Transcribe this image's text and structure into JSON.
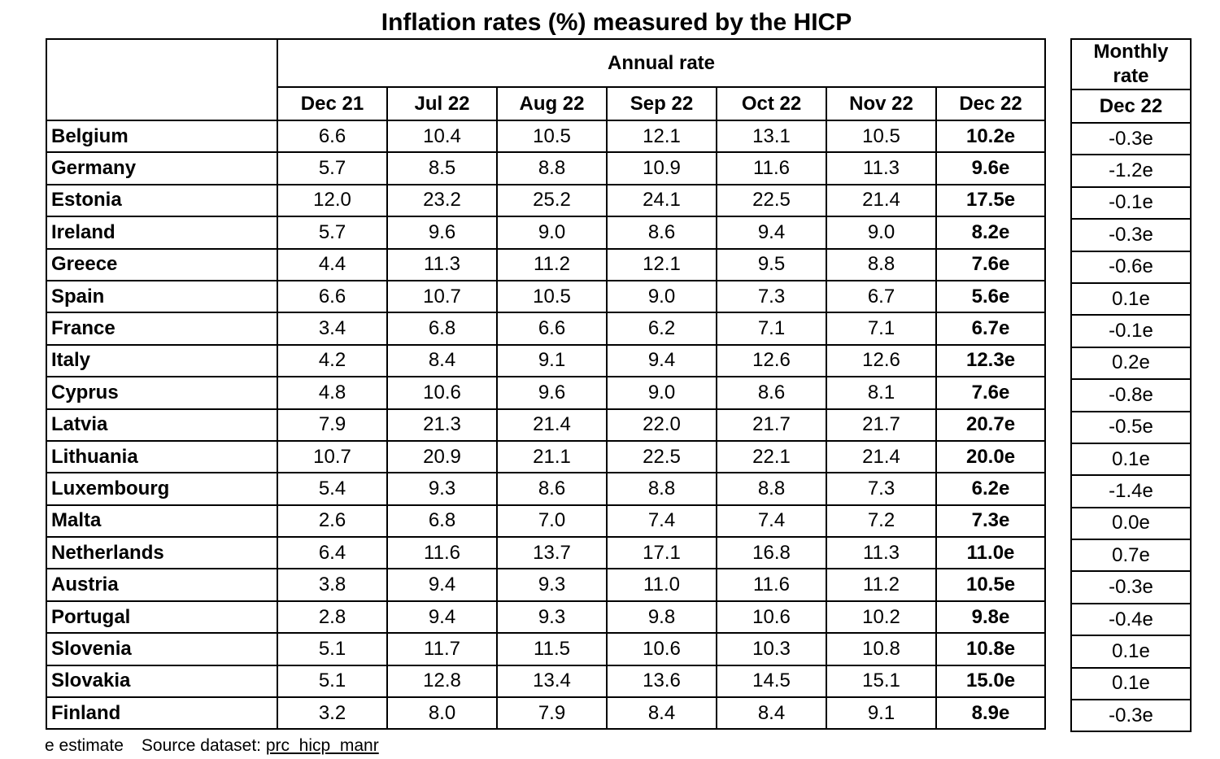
{
  "title": "Inflation rates (%) measured by the HICP",
  "annual_header": "Annual rate",
  "monthly_header": "Monthly rate",
  "annual_columns": [
    "Dec 21",
    "Jul 22",
    "Aug 22",
    "Sep 22",
    "Oct 22",
    "Nov 22",
    "Dec 22"
  ],
  "monthly_column": "Dec 22",
  "rows": [
    {
      "country": "Belgium",
      "annual": [
        "6.6",
        "10.4",
        "10.5",
        "12.1",
        "13.1",
        "10.5",
        "10.2e"
      ],
      "monthly": "-0.3e"
    },
    {
      "country": "Germany",
      "annual": [
        "5.7",
        "8.5",
        "8.8",
        "10.9",
        "11.6",
        "11.3",
        "9.6e"
      ],
      "monthly": "-1.2e"
    },
    {
      "country": "Estonia",
      "annual": [
        "12.0",
        "23.2",
        "25.2",
        "24.1",
        "22.5",
        "21.4",
        "17.5e"
      ],
      "monthly": "-0.1e"
    },
    {
      "country": "Ireland",
      "annual": [
        "5.7",
        "9.6",
        "9.0",
        "8.6",
        "9.4",
        "9.0",
        "8.2e"
      ],
      "monthly": "-0.3e"
    },
    {
      "country": "Greece",
      "annual": [
        "4.4",
        "11.3",
        "11.2",
        "12.1",
        "9.5",
        "8.8",
        "7.6e"
      ],
      "monthly": "-0.6e"
    },
    {
      "country": "Spain",
      "annual": [
        "6.6",
        "10.7",
        "10.5",
        "9.0",
        "7.3",
        "6.7",
        "5.6e"
      ],
      "monthly": "0.1e"
    },
    {
      "country": "France",
      "annual": [
        "3.4",
        "6.8",
        "6.6",
        "6.2",
        "7.1",
        "7.1",
        "6.7e"
      ],
      "monthly": "-0.1e"
    },
    {
      "country": "Italy",
      "annual": [
        "4.2",
        "8.4",
        "9.1",
        "9.4",
        "12.6",
        "12.6",
        "12.3e"
      ],
      "monthly": "0.2e"
    },
    {
      "country": "Cyprus",
      "annual": [
        "4.8",
        "10.6",
        "9.6",
        "9.0",
        "8.6",
        "8.1",
        "7.6e"
      ],
      "monthly": "-0.8e"
    },
    {
      "country": "Latvia",
      "annual": [
        "7.9",
        "21.3",
        "21.4",
        "22.0",
        "21.7",
        "21.7",
        "20.7e"
      ],
      "monthly": "-0.5e"
    },
    {
      "country": "Lithuania",
      "annual": [
        "10.7",
        "20.9",
        "21.1",
        "22.5",
        "22.1",
        "21.4",
        "20.0e"
      ],
      "monthly": "0.1e"
    },
    {
      "country": "Luxembourg",
      "annual": [
        "5.4",
        "9.3",
        "8.6",
        "8.8",
        "8.8",
        "7.3",
        "6.2e"
      ],
      "monthly": "-1.4e"
    },
    {
      "country": "Malta",
      "annual": [
        "2.6",
        "6.8",
        "7.0",
        "7.4",
        "7.4",
        "7.2",
        "7.3e"
      ],
      "monthly": "0.0e"
    },
    {
      "country": "Netherlands",
      "annual": [
        "6.4",
        "11.6",
        "13.7",
        "17.1",
        "16.8",
        "11.3",
        "11.0e"
      ],
      "monthly": "0.7e"
    },
    {
      "country": "Austria",
      "annual": [
        "3.8",
        "9.4",
        "9.3",
        "11.0",
        "11.6",
        "11.2",
        "10.5e"
      ],
      "monthly": "-0.3e"
    },
    {
      "country": "Portugal",
      "annual": [
        "2.8",
        "9.4",
        "9.3",
        "9.8",
        "10.6",
        "10.2",
        "9.8e"
      ],
      "monthly": "-0.4e"
    },
    {
      "country": "Slovenia",
      "annual": [
        "5.1",
        "11.7",
        "11.5",
        "10.6",
        "10.3",
        "10.8",
        "10.8e"
      ],
      "monthly": "0.1e"
    },
    {
      "country": "Slovakia",
      "annual": [
        "5.1",
        "12.8",
        "13.4",
        "13.6",
        "14.5",
        "15.1",
        "15.0e"
      ],
      "monthly": "0.1e"
    },
    {
      "country": "Finland",
      "annual": [
        "3.2",
        "8.0",
        "7.9",
        "8.4",
        "8.4",
        "9.1",
        "8.9e"
      ],
      "monthly": "-0.3e"
    }
  ],
  "footnote": {
    "estimate_note": "e estimate",
    "source_label": "Source dataset:",
    "source_dataset": "prc_hicp_manr"
  }
}
